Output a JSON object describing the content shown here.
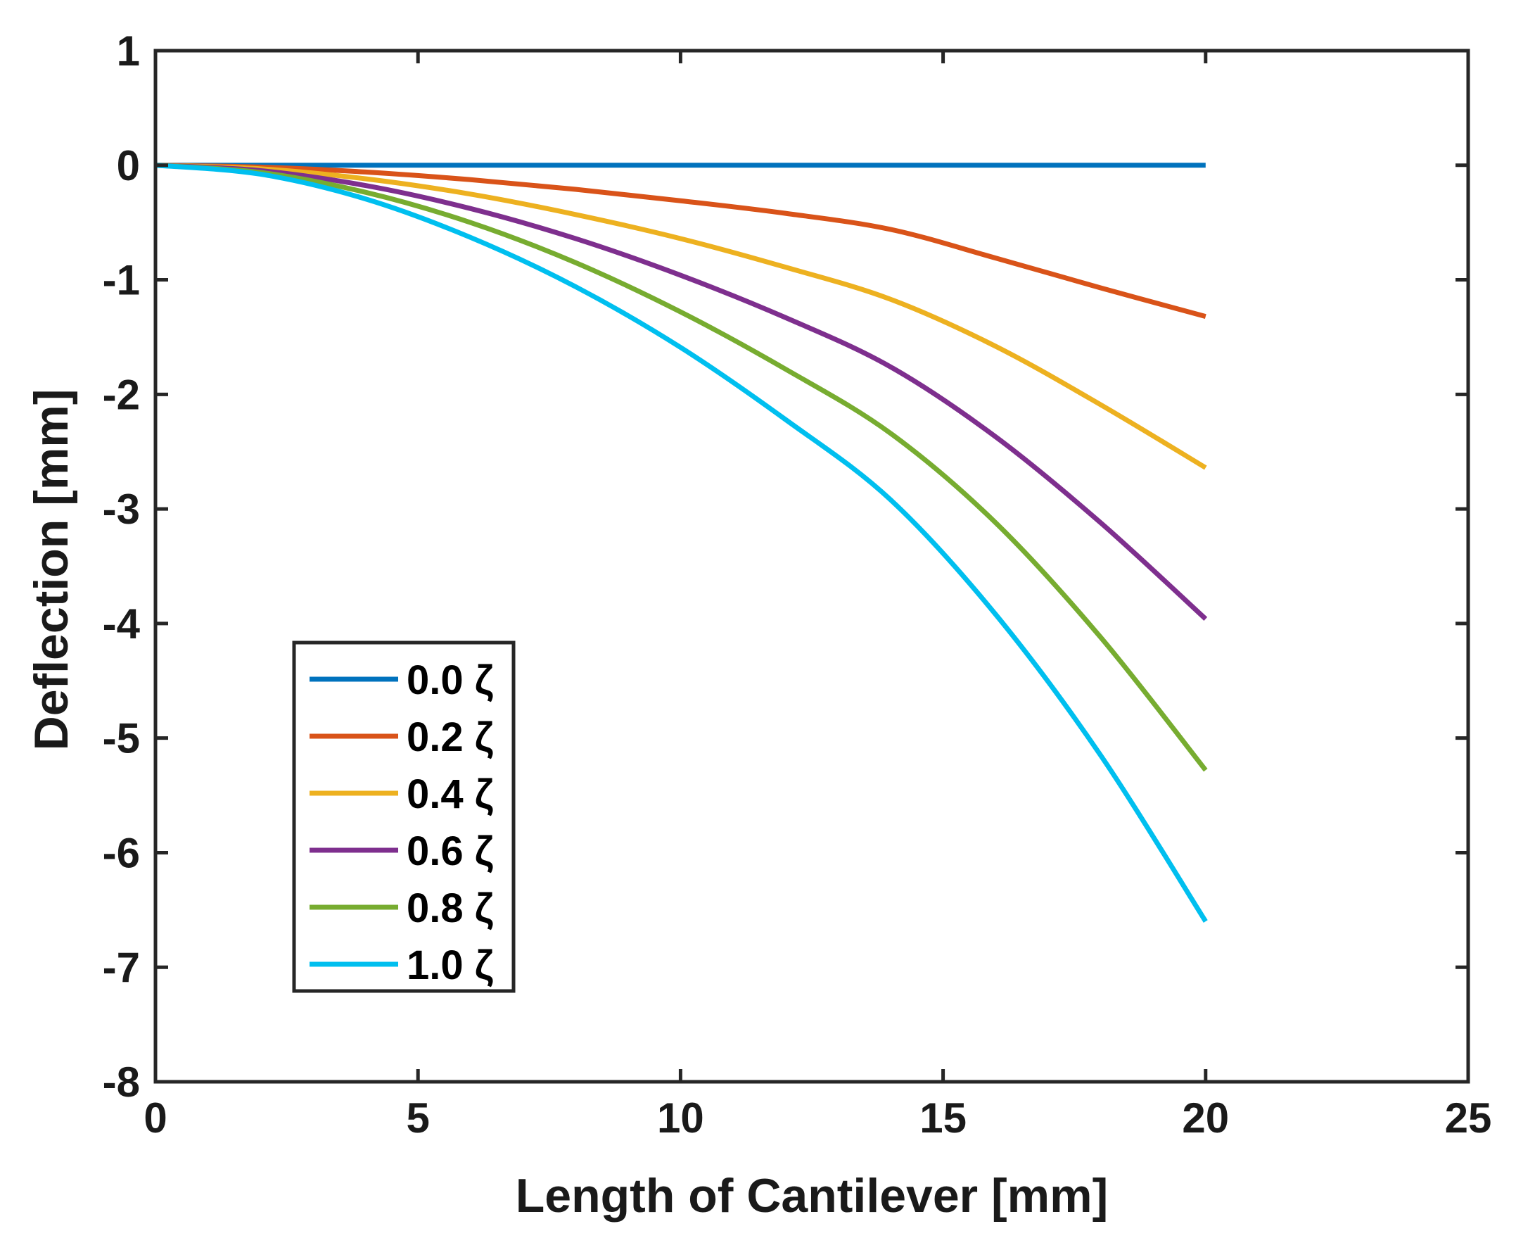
{
  "chart_data": {
    "type": "line",
    "title": "",
    "xlabel": "Length of Cantilever [mm]",
    "ylabel": "Deflection [mm]",
    "xlim": [
      0,
      25
    ],
    "ylim": [
      -8,
      1
    ],
    "xticks": [
      0,
      5,
      10,
      15,
      20,
      25
    ],
    "yticks": [
      1,
      0,
      -1,
      -2,
      -3,
      -4,
      -5,
      -6,
      -7,
      -8
    ],
    "xtick_labels": [
      "0",
      "5",
      "10",
      "15",
      "20",
      "25"
    ],
    "ytick_labels": [
      "1",
      "0",
      "-1",
      "-2",
      "-3",
      "-4",
      "-5",
      "-6",
      "-7",
      "-8"
    ],
    "grid": false,
    "legend_position": "bottom-left",
    "x": [
      0,
      2,
      4,
      6,
      8,
      10,
      12,
      14,
      16,
      18,
      20
    ],
    "series": [
      {
        "name": "0.0 ζ",
        "color": "#0072BD",
        "values": [
          0,
          0,
          0,
          0,
          0,
          0,
          0,
          0,
          0,
          0,
          0
        ]
      },
      {
        "name": "0.2 ζ",
        "color": "#D95319",
        "values": [
          0,
          -0.016,
          -0.059,
          -0.126,
          -0.21,
          -0.31,
          -0.42,
          -0.56,
          -0.81,
          -1.07,
          -1.32
        ]
      },
      {
        "name": "0.4 ζ",
        "color": "#EDB120",
        "values": [
          0,
          -0.031,
          -0.118,
          -0.252,
          -0.43,
          -0.64,
          -0.89,
          -1.17,
          -1.58,
          -2.09,
          -2.64
        ]
      },
      {
        "name": "0.6 ζ",
        "color": "#7E2F8E",
        "values": [
          0,
          -0.047,
          -0.177,
          -0.378,
          -0.64,
          -0.96,
          -1.33,
          -1.76,
          -2.37,
          -3.12,
          -3.96
        ]
      },
      {
        "name": "0.8 ζ",
        "color": "#77AC30",
        "values": [
          0,
          -0.063,
          -0.236,
          -0.5,
          -0.85,
          -1.28,
          -1.78,
          -2.34,
          -3.12,
          -4.12,
          -5.28
        ]
      },
      {
        "name": "1.0 ζ",
        "color": "#00BFEF",
        "values": [
          0,
          -0.078,
          -0.294,
          -0.63,
          -1.06,
          -1.59,
          -2.22,
          -2.92,
          -3.92,
          -5.15,
          -6.6
        ]
      }
    ]
  }
}
